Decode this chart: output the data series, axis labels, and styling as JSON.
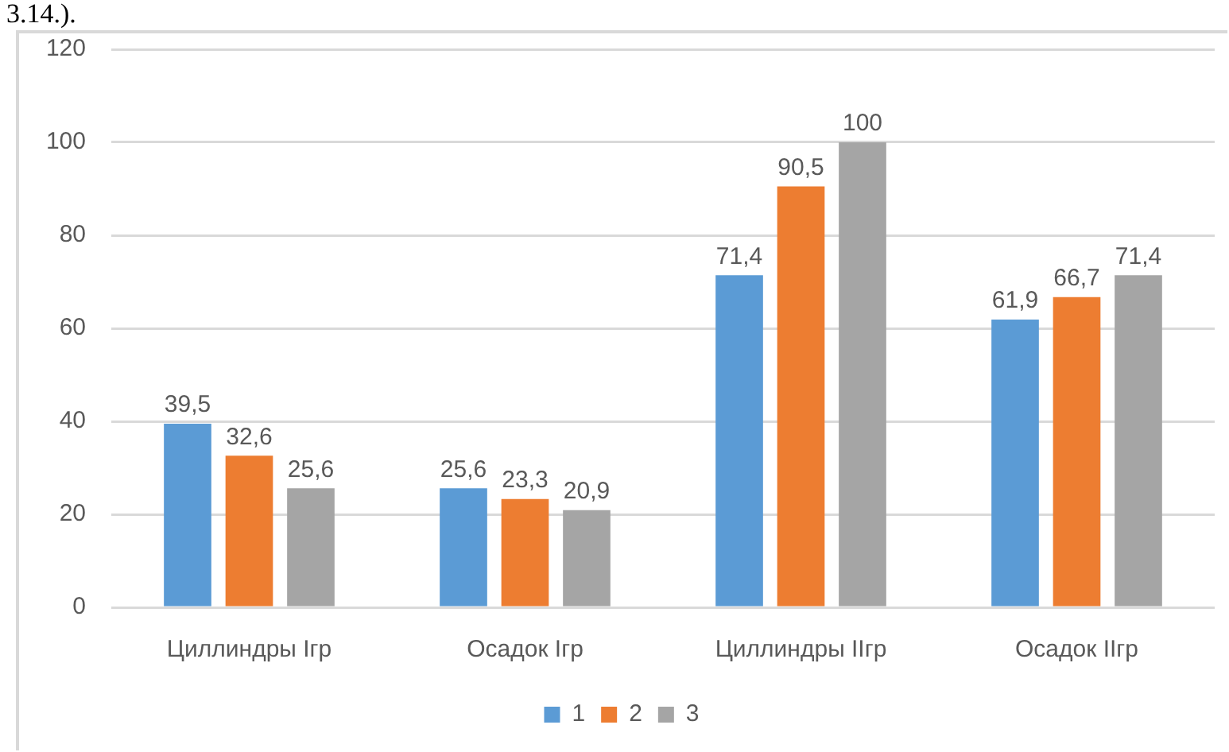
{
  "chart_data": {
    "type": "bar",
    "categories": [
      "Циллиндры Iгр",
      "Осадок Iгр",
      "Циллиндры IIгр",
      "Осадок IIгр"
    ],
    "series": [
      {
        "name": "1",
        "color": "#5b9bd5",
        "values": [
          39.5,
          25.6,
          71.4,
          61.9
        ],
        "value_labels": [
          "39,5",
          "25,6",
          "71,4",
          "61,9"
        ]
      },
      {
        "name": "2",
        "color": "#ed7d31",
        "values": [
          32.6,
          23.3,
          90.5,
          66.7
        ],
        "value_labels": [
          "32,6",
          "23,3",
          "90,5",
          "66,7"
        ]
      },
      {
        "name": "3",
        "color": "#a5a5a5",
        "values": [
          25.6,
          20.9,
          100,
          71.4
        ],
        "value_labels": [
          "25,6",
          "20,9",
          "100",
          "71,4"
        ]
      }
    ],
    "ylim": [
      0,
      120
    ],
    "yticks": [
      0,
      20,
      40,
      60,
      80,
      100,
      120
    ],
    "grid": "y",
    "legend": "bottom",
    "annotations": [
      "3.14.)."
    ]
  }
}
